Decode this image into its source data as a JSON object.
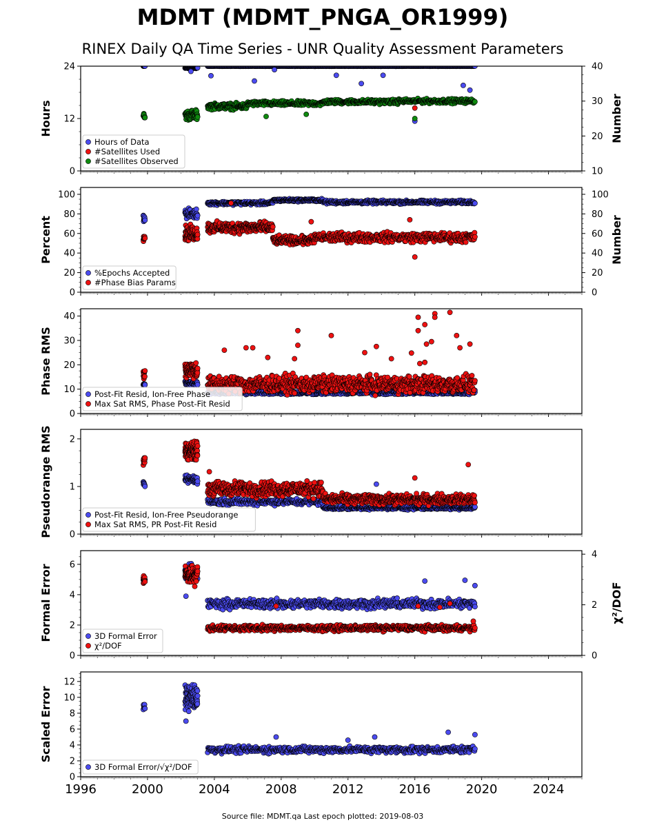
{
  "title": "MDMT (MDMT_PNGA_OR1999)",
  "subtitle": "RINEX Daily QA Time Series - UNR Quality Assessment Parameters",
  "footer": "Source file: MDMT.qa Last epoch plotted: 2019-08-03",
  "colors": {
    "blue": "#4b4bf0",
    "red": "#ee1111",
    "green": "#0f8a0f",
    "edge": "#000000"
  },
  "chart_data": [
    {
      "type": "scatter",
      "panel": "hours",
      "ylabel": "Hours",
      "ylabel_right": "Number",
      "xlim": [
        1996,
        2026
      ],
      "x_ticks": [
        "1996",
        "2000",
        "2004",
        "2008",
        "2012",
        "2016",
        "2020",
        "2024"
      ],
      "ylim": [
        0,
        24
      ],
      "y_ticks": [
        "0",
        "12",
        "24"
      ],
      "ylim_right": [
        10,
        40
      ],
      "y_ticks_right": [
        "10",
        "20",
        "30",
        "40"
      ],
      "legend_position": "lower-left",
      "series": [
        {
          "name": "Hours of Data",
          "axis": "left",
          "color": "blue",
          "segments": [
            {
              "x": [
                1999.75,
                1999.85
              ],
              "y": 24.0,
              "spread": 0.1,
              "n": 10
            },
            {
              "x": [
                2002.25,
                2003.0
              ],
              "y": 23.6,
              "spread": 0.4,
              "n": 50
            },
            {
              "x": [
                2003.6,
                2019.6
              ],
              "y": 24.0,
              "spread": 0.1,
              "n": 500
            }
          ],
          "points": [
            [
              2003.8,
              21.8
            ],
            [
              2007.6,
              23.2
            ],
            [
              2011.3,
              21.9
            ],
            [
              2012.8,
              20.0
            ],
            [
              2014.1,
              21.9
            ],
            [
              2016.0,
              11.4
            ],
            [
              2018.9,
              19.6
            ],
            [
              2019.3,
              18.5
            ],
            [
              2002.6,
              22.8
            ],
            [
              2006.4,
              20.6
            ]
          ]
        },
        {
          "name": "#Satellites Used",
          "axis": "right",
          "color": "red",
          "segments": [],
          "points": [
            [
              2016.0,
              28.0
            ]
          ]
        },
        {
          "name": "#Satellites Observed",
          "axis": "right",
          "color": "green",
          "segments": [
            {
              "x": [
                1999.75,
                1999.85
              ],
              "y": 25.5,
              "spread": 3.0,
              "n": 8
            },
            {
              "x": [
                2002.25,
                2003.0
              ],
              "y": 26.0,
              "spread": 4.0,
              "n": 60
            },
            {
              "x": [
                2003.6,
                2006.0
              ],
              "y": 28.5,
              "spread": 2.5,
              "n": 140
            },
            {
              "x": [
                2006.0,
                2010.5
              ],
              "y": 29.3,
              "spread": 2.0,
              "n": 200
            },
            {
              "x": [
                2010.5,
                2015.0
              ],
              "y": 29.8,
              "spread": 1.8,
              "n": 200
            },
            {
              "x": [
                2015.0,
                2019.6
              ],
              "y": 30.0,
              "spread": 1.8,
              "n": 200
            }
          ],
          "points": [
            [
              2016.0,
              25.0
            ],
            [
              2007.1,
              25.6
            ],
            [
              2009.5,
              26.2
            ]
          ]
        }
      ]
    },
    {
      "type": "scatter",
      "panel": "percent",
      "ylabel": "Percent",
      "ylabel_right": "Number",
      "xlim": [
        1996,
        2026
      ],
      "ylim": [
        0,
        107
      ],
      "y_ticks": [
        "0",
        "20",
        "40",
        "60",
        "80",
        "100"
      ],
      "ylim_right": [
        0,
        107
      ],
      "y_ticks_right": [
        "0",
        "20",
        "40",
        "60",
        "80",
        "100"
      ],
      "legend_position": "lower-left",
      "series": [
        {
          "name": "%Epochs Accepted",
          "axis": "left",
          "color": "blue",
          "segments": [
            {
              "x": [
                1999.75,
                1999.85
              ],
              "y": 76,
              "spread": 10,
              "n": 10
            },
            {
              "x": [
                2002.25,
                2003.0
              ],
              "y": 80,
              "spread": 14,
              "n": 50
            },
            {
              "x": [
                2003.6,
                2007.5
              ],
              "y": 91,
              "spread": 5,
              "n": 200
            },
            {
              "x": [
                2007.5,
                2010.5
              ],
              "y": 94,
              "spread": 4,
              "n": 160
            },
            {
              "x": [
                2010.5,
                2019.6
              ],
              "y": 92,
              "spread": 5,
              "n": 400
            }
          ],
          "points": []
        },
        {
          "name": "#Phase Bias Params",
          "axis": "right",
          "color": "red",
          "segments": [
            {
              "x": [
                1999.75,
                1999.85
              ],
              "y": 56,
              "spread": 10,
              "n": 10
            },
            {
              "x": [
                2002.25,
                2003.0
              ],
              "y": 60,
              "spread": 22,
              "n": 80
            },
            {
              "x": [
                2003.6,
                2007.5
              ],
              "y": 66,
              "spread": 16,
              "n": 250
            },
            {
              "x": [
                2007.5,
                2010.0
              ],
              "y": 53,
              "spread": 12,
              "n": 150
            },
            {
              "x": [
                2010.0,
                2019.6
              ],
              "y": 56,
              "spread": 14,
              "n": 420
            }
          ],
          "points": [
            [
              2016.0,
              36
            ],
            [
              2005.0,
              91
            ],
            [
              2015.7,
              74
            ],
            [
              2009.8,
              72
            ]
          ]
        }
      ]
    },
    {
      "type": "scatter",
      "panel": "phase-rms",
      "ylabel": "Phase RMS",
      "xlim": [
        1996,
        2026
      ],
      "ylim": [
        0,
        43
      ],
      "y_ticks": [
        "0",
        "10",
        "20",
        "30",
        "40"
      ],
      "legend_position": "lower-left",
      "series": [
        {
          "name": "Post-Fit Resid, Ion-Free Phase",
          "axis": "left",
          "color": "blue",
          "segments": [
            {
              "x": [
                1999.75,
                1999.85
              ],
              "y": 12,
              "spread": 1.5,
              "n": 8
            },
            {
              "x": [
                2002.25,
                2003.0
              ],
              "y": 12.5,
              "spread": 2.5,
              "n": 50
            },
            {
              "x": [
                2003.6,
                2019.6
              ],
              "y": 8.5,
              "spread": 2.0,
              "n": 600
            }
          ],
          "points": [
            [
              2019.6,
              9.5
            ]
          ]
        },
        {
          "name": "Max Sat RMS, Phase Post-Fit Resid",
          "axis": "left",
          "color": "red",
          "segments": [
            {
              "x": [
                1999.75,
                1999.85
              ],
              "y": 16.5,
              "spread": 6,
              "n": 10
            },
            {
              "x": [
                2002.25,
                2003.0
              ],
              "y": 18,
              "spread": 10,
              "n": 80
            },
            {
              "x": [
                2003.6,
                2019.6
              ],
              "y": 12,
              "spread": 10,
              "n": 800
            }
          ],
          "points": [
            [
              2009.0,
              34
            ],
            [
              2009.0,
              28
            ],
            [
              2011.0,
              32
            ],
            [
              2016.2,
              39.5
            ],
            [
              2016.2,
              34
            ],
            [
              2016.6,
              36.5
            ],
            [
              2017.2,
              41
            ],
            [
              2017.2,
              39.5
            ],
            [
              2018.1,
              41.5
            ],
            [
              2018.5,
              32
            ],
            [
              2018.7,
              27
            ],
            [
              2017.0,
              29.5
            ],
            [
              2016.7,
              28.5
            ],
            [
              2016.3,
              20.5
            ],
            [
              2016.6,
              21
            ],
            [
              2019.3,
              28.5
            ],
            [
              2015.8,
              24.8
            ],
            [
              2013.7,
              27.5
            ],
            [
              2006.3,
              27
            ],
            [
              2005.9,
              27
            ],
            [
              2004.6,
              26
            ],
            [
              2007.2,
              23
            ],
            [
              2008.8,
              22.5
            ],
            [
              2013.0,
              25
            ],
            [
              2014.6,
              22.5
            ]
          ]
        }
      ]
    },
    {
      "type": "scatter",
      "panel": "pseudorange-rms",
      "ylabel": "Pseudorange RMS",
      "xlim": [
        1996,
        2026
      ],
      "ylim": [
        0,
        2.2
      ],
      "y_ticks": [
        "0",
        "1",
        "2"
      ],
      "legend_position": "lower-left",
      "series": [
        {
          "name": "Post-Fit Resid, Ion-Free Pseudorange",
          "axis": "left",
          "color": "blue",
          "segments": [
            {
              "x": [
                1999.75,
                1999.85
              ],
              "y": 1.03,
              "spread": 0.15,
              "n": 8
            },
            {
              "x": [
                2002.25,
                2003.0
              ],
              "y": 1.15,
              "spread": 0.25,
              "n": 60
            },
            {
              "x": [
                2003.6,
                2010.5
              ],
              "y": 0.68,
              "spread": 0.2,
              "n": 300
            },
            {
              "x": [
                2010.5,
                2019.6
              ],
              "y": 0.55,
              "spread": 0.1,
              "n": 380
            }
          ],
          "points": [
            [
              2013.7,
              1.05
            ],
            [
              2019.6,
              0.57
            ]
          ]
        },
        {
          "name": "Max Sat RMS, PR Post-Fit Resid",
          "axis": "left",
          "color": "red",
          "segments": [
            {
              "x": [
                1999.75,
                1999.85
              ],
              "y": 1.55,
              "spread": 0.35,
              "n": 10
            },
            {
              "x": [
                2002.25,
                2003.0
              ],
              "y": 1.75,
              "spread": 0.5,
              "n": 100
            },
            {
              "x": [
                2003.6,
                2010.5
              ],
              "y": 0.95,
              "spread": 0.45,
              "n": 400
            },
            {
              "x": [
                2010.5,
                2019.6
              ],
              "y": 0.73,
              "spread": 0.3,
              "n": 500
            }
          ],
          "points": [
            [
              2016.0,
              1.18
            ],
            [
              2019.2,
              1.46
            ],
            [
              2003.7,
              1.31
            ]
          ]
        }
      ]
    },
    {
      "type": "scatter",
      "panel": "formal-error",
      "ylabel": "Formal Error",
      "ylabel_right": "χ²/DOF",
      "xlim": [
        1996,
        2026
      ],
      "ylim": [
        0,
        6.9
      ],
      "y_ticks": [
        "0",
        "2",
        "4",
        "6"
      ],
      "ylim_right": [
        0,
        4.14
      ],
      "y_ticks_right": [
        "0",
        "2",
        "4"
      ],
      "legend_position": "lower-left",
      "series": [
        {
          "name": "3D Formal Error",
          "axis": "left",
          "color": "blue",
          "segments": [
            {
              "x": [
                1999.75,
                1999.85
              ],
              "y": 5.0,
              "spread": 0.5,
              "n": 8
            },
            {
              "x": [
                2002.25,
                2003.0
              ],
              "y": 5.4,
              "spread": 1.6,
              "n": 80
            },
            {
              "x": [
                2003.6,
                2019.6
              ],
              "y": 3.4,
              "spread": 0.9,
              "n": 650
            }
          ],
          "points": [
            [
              2016.6,
              4.9
            ],
            [
              2019.0,
              4.95
            ],
            [
              2002.3,
              3.9
            ],
            [
              2019.6,
              4.6
            ]
          ]
        },
        {
          "name": "χ²/DOF",
          "axis": "right",
          "color": "red",
          "segments": [
            {
              "x": [
                1999.75,
                1999.85
              ],
              "y": 3.0,
              "spread": 0.5,
              "n": 10
            },
            {
              "x": [
                2002.25,
                2003.0
              ],
              "y": 3.2,
              "spread": 1.1,
              "n": 90
            },
            {
              "x": [
                2003.6,
                2019.6
              ],
              "y": 1.08,
              "spread": 0.32,
              "n": 700
            }
          ],
          "points": [
            [
              2007.7,
              1.95
            ],
            [
              2016.2,
              1.95
            ],
            [
              2017.5,
              1.9
            ],
            [
              2018.1,
              2.05
            ],
            [
              2019.5,
              1.35
            ]
          ]
        }
      ]
    },
    {
      "type": "scatter",
      "panel": "scaled-error",
      "ylabel": "Scaled Error",
      "xlim": [
        1996,
        2026
      ],
      "ylim": [
        0,
        13.2
      ],
      "y_ticks": [
        "0",
        "2",
        "4",
        "6",
        "8",
        "10",
        "12"
      ],
      "legend_position": "lower-left",
      "series": [
        {
          "name": "3D Formal Error/√χ²/DOF",
          "axis": "left",
          "color": "blue",
          "segments": [
            {
              "x": [
                1999.75,
                1999.85
              ],
              "y": 8.8,
              "spread": 1.5,
              "n": 8
            },
            {
              "x": [
                2002.25,
                2003.0
              ],
              "y": 10.0,
              "spread": 4.5,
              "n": 100
            },
            {
              "x": [
                2003.6,
                2019.6
              ],
              "y": 3.4,
              "spread": 1.2,
              "n": 650
            }
          ],
          "points": [
            [
              2007.7,
              5.0
            ],
            [
              2013.6,
              5.0
            ],
            [
              2018.0,
              5.6
            ],
            [
              2019.6,
              5.3
            ],
            [
              2002.3,
              7.0
            ],
            [
              2012.0,
              4.6
            ]
          ]
        }
      ]
    }
  ]
}
